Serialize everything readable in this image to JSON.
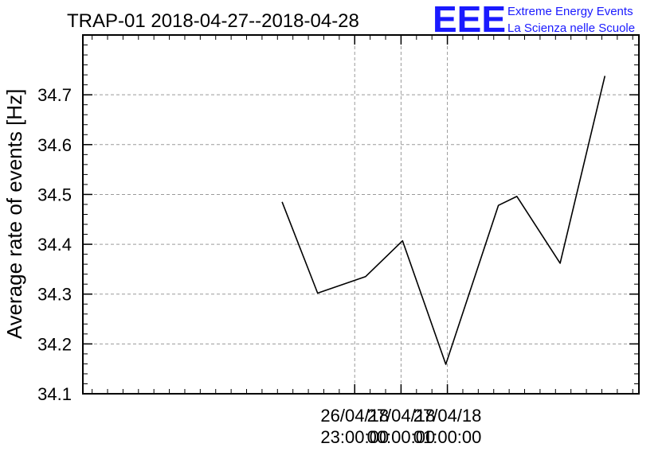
{
  "header": {
    "title": "TRAP-01 2018-04-27--2018-04-28",
    "logo_mark": "EEE",
    "logo_line1": "Extreme Energy Events",
    "logo_line2": "La Scienza nelle Scuole",
    "logo_color": "#1a1aff"
  },
  "chart_data": {
    "type": "line",
    "title": "TRAP-01 2018-04-27--2018-04-28",
    "xlabel": "",
    "ylabel": "Average rate of events [Hz]",
    "ylim": [
      34.1,
      34.82
    ],
    "yticks": [
      "34.1",
      "34.2",
      "34.3",
      "34.4",
      "34.5",
      "34.6",
      "34.7"
    ],
    "xlim": [
      -103,
      77
    ],
    "xticks": [
      {
        "x": -15,
        "line1": "26/04/18",
        "line2": "23:00:00"
      },
      {
        "x": 0,
        "line1": "27/04/18",
        "line2": "00:00:00"
      },
      {
        "x": 15,
        "line1": "27/04/18",
        "line2": "01:00:00"
      }
    ],
    "grid": true,
    "series": [
      {
        "name": "",
        "color": "#000000",
        "x": [
          -38.5,
          -27,
          -11.5,
          0.5,
          14.5,
          31.5,
          37.5,
          51.5,
          66
        ],
        "values": [
          34.485,
          34.302,
          34.335,
          34.407,
          34.159,
          34.478,
          34.496,
          34.362,
          34.738
        ]
      }
    ]
  }
}
